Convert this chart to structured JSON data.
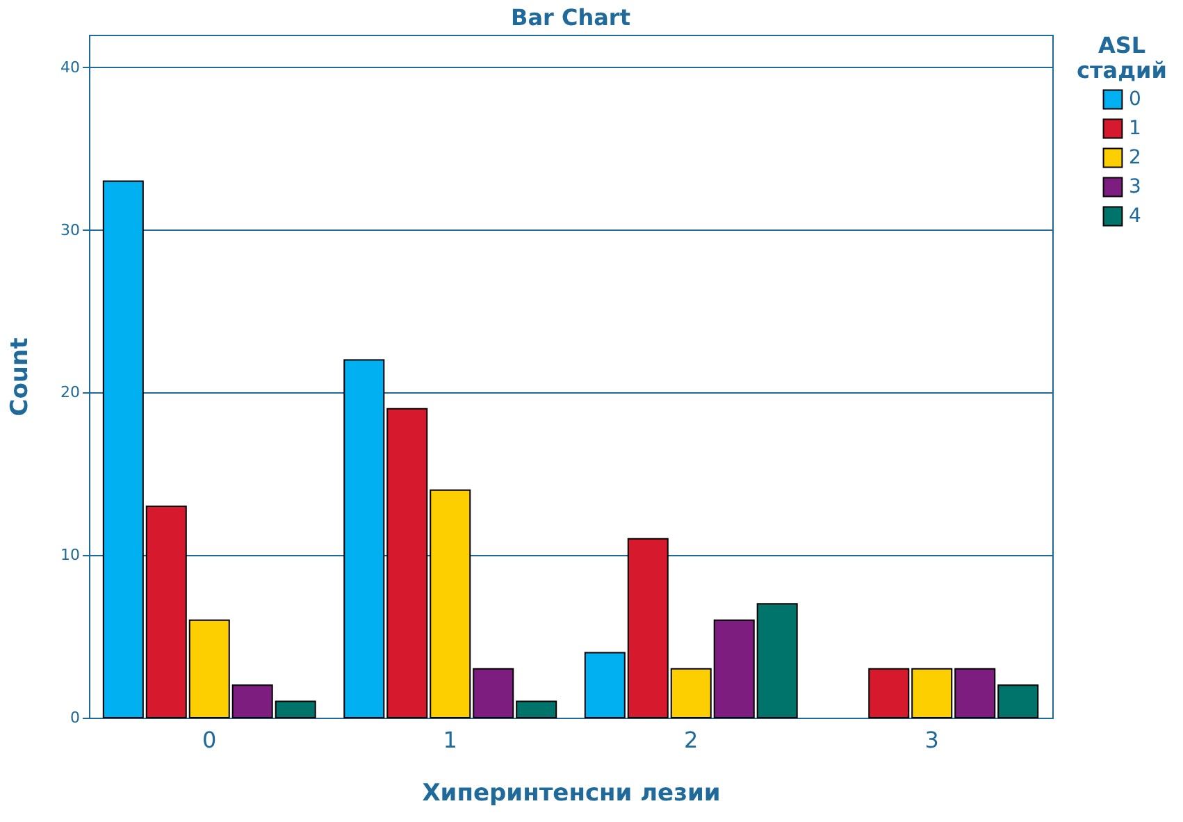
{
  "chart_data": {
    "type": "bar",
    "title": "Bar Chart",
    "xlabel": "Хиперинтенсни лезии",
    "ylabel": "Count",
    "legend_title": "ASL стадий",
    "categories": [
      "0",
      "1",
      "2",
      "3"
    ],
    "series": [
      {
        "name": "0",
        "color": "#00b0f0",
        "values": [
          33,
          22,
          4,
          null
        ]
      },
      {
        "name": "1",
        "color": "#d7192d",
        "values": [
          13,
          19,
          11,
          3
        ]
      },
      {
        "name": "2",
        "color": "#fecf00",
        "values": [
          6,
          14,
          3,
          3
        ]
      },
      {
        "name": "3",
        "color": "#7d1d7f",
        "values": [
          2,
          3,
          6,
          3
        ]
      },
      {
        "name": "4",
        "color": "#00736a",
        "values": [
          1,
          1,
          7,
          2
        ]
      }
    ],
    "ylim": [
      0,
      42
    ],
    "yticks": [
      0,
      10,
      20,
      30,
      40
    ],
    "grid": "y",
    "legend": "top right"
  }
}
